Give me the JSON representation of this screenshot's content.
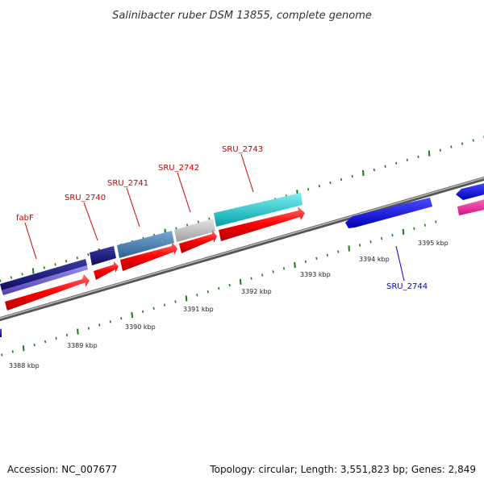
{
  "title": "Salinibacter ruber DSM 13855, complete genome",
  "footer": {
    "accession": "Accession: NC_007677",
    "summary": "Topology: circular; Length: 3,551,823 bp; Genes: 2,849"
  },
  "colors": {
    "backbone": "#808080",
    "minor_tick": "#1a7a1a",
    "major_tick": "#1a7a1a",
    "label_red": "#cc0000",
    "label_blue": "#0000cc",
    "cds_red": "#ff0000",
    "navy": "#1a1a80",
    "lavender": "#6a5acd",
    "steel_blue": "#4682b4",
    "silver": "#c0c0c0",
    "cyan": "#00c8c8",
    "blue": "#0000ff",
    "magenta": "#ff1493"
  },
  "tick_labels": [
    "3388 kbp",
    "3389 kbp",
    "3390 kbp",
    "3391 kbp",
    "3392 kbp",
    "3393 kbp",
    "3394 kbp",
    "3395 kbp"
  ],
  "gene_labels": [
    "fabF",
    "SRU_2740",
    "SRU_2741",
    "SRU_2742",
    "SRU_2743",
    "SRU_2744"
  ]
}
